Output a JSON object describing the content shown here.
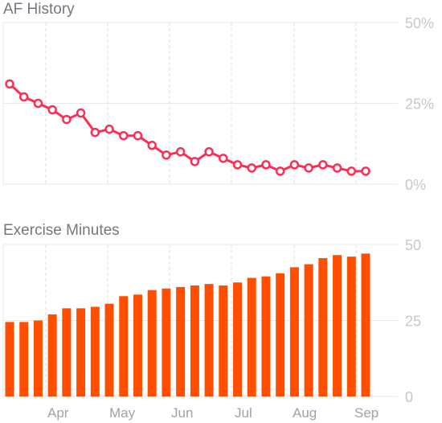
{
  "chart_data": [
    {
      "type": "line",
      "title": "AF History",
      "y_ticks": [
        "50%",
        "25%",
        "0%"
      ],
      "y_tick_values": [
        50,
        25,
        0
      ],
      "ylim": [
        0,
        50
      ],
      "grid": true,
      "series": [
        {
          "color": "#ff2d55",
          "values": [
            31,
            27,
            25,
            23,
            20,
            22,
            16,
            17,
            15,
            15,
            12,
            9,
            10,
            7,
            10,
            8,
            6,
            5,
            6,
            4,
            6,
            5,
            6,
            5,
            4,
            4
          ]
        }
      ]
    },
    {
      "type": "bar",
      "title": "Exercise Minutes",
      "y_ticks": [
        "50",
        "25",
        "0"
      ],
      "y_tick_values": [
        50,
        25,
        0
      ],
      "ylim": [
        0,
        50
      ],
      "grid": true,
      "x_tick_labels": [
        "Apr",
        "May",
        "Jun",
        "Jul",
        "Aug",
        "Sep"
      ],
      "series": [
        {
          "color": "#ff4e00",
          "values": [
            24.5,
            24.5,
            25,
            27,
            29,
            29,
            29.5,
            30.5,
            33,
            33.5,
            35,
            35.5,
            36,
            36.5,
            37,
            36.5,
            37.5,
            39,
            39.5,
            40.5,
            42.5,
            43.5,
            45.5,
            46.5,
            46,
            47
          ]
        }
      ]
    }
  ]
}
